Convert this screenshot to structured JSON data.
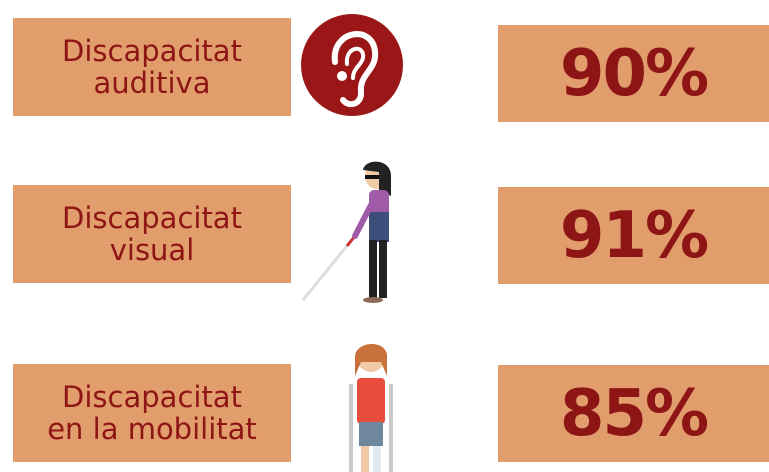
{
  "rows": [
    {
      "label": [
        "Discapacitat",
        "auditiva"
      ],
      "value": "90%"
    },
    {
      "label": [
        "Discapacitat",
        "visual"
      ],
      "value": "91%"
    },
    {
      "label": [
        "Discapacitat",
        "en la mobilitat"
      ],
      "value": "85%"
    }
  ]
}
